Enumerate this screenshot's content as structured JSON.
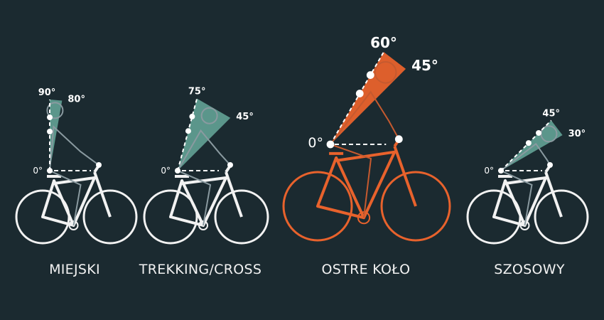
{
  "colors": {
    "background": "#1b2a30",
    "line": "#f2f2f2",
    "highlight": "#e8622c",
    "cone": "#5f9c90",
    "cone_highlight": "#e8622c"
  },
  "bikes": [
    {
      "name": "MIEJSKI",
      "angle_high": "90°",
      "angle_low": "80°",
      "angle_zero": "0°",
      "a_high": 90,
      "a_low": 80,
      "highlight": false
    },
    {
      "name": "TREKKING/CROSS",
      "angle_high": "75°",
      "angle_low": "45°",
      "angle_zero": "0°",
      "a_high": 75,
      "a_low": 45,
      "highlight": false
    },
    {
      "name": "OSTRE KOŁO",
      "angle_high": "60°",
      "angle_low": "45°",
      "angle_zero": "0°",
      "a_high": 60,
      "a_low": 45,
      "highlight": true
    },
    {
      "name": "SZOSOWY",
      "angle_high": "45°",
      "angle_low": "30°",
      "angle_zero": "0°",
      "a_high": 45,
      "a_low": 30,
      "highlight": false
    }
  ]
}
